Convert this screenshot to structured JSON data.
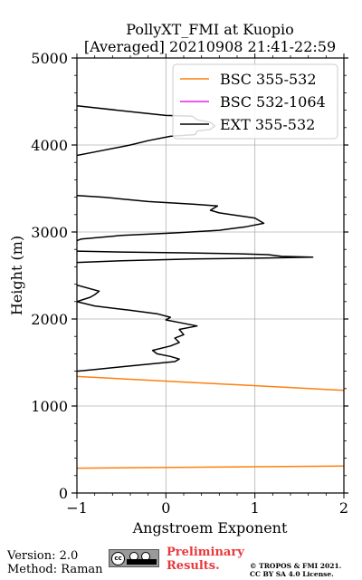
{
  "chart_data": {
    "type": "line",
    "title": "PollyXT_FMI at Kuopio",
    "subtitle": "[Averaged] 20210908 21:41-22:59",
    "xlabel": "Angstroem Exponent",
    "ylabel": "Height (m)",
    "xlim": [
      -1,
      2
    ],
    "ylim": [
      0,
      5000
    ],
    "x_ticks": [
      "−1",
      "0",
      "1",
      "2"
    ],
    "y_ticks": [
      "0",
      "1000",
      "2000",
      "3000",
      "4000",
      "5000"
    ],
    "grid": true,
    "legend_position": "top-right",
    "series": [
      {
        "name": "BSC 355-532",
        "color": "#ff7f0e",
        "segments": [
          [
            [
              -1.0,
              1340
            ],
            [
              2.0,
              1180
            ]
          ],
          [
            [
              -1.0,
              285
            ],
            [
              2.0,
              310
            ]
          ]
        ]
      },
      {
        "name": "BSC 532-1064",
        "color": "#e81ee8",
        "segments": []
      },
      {
        "name": "EXT 355-532",
        "color": "#000000",
        "segments": [
          [
            [
              -1.0,
              4450
            ],
            [
              0.0,
              4340
            ],
            [
              0.3,
              4330
            ],
            [
              0.35,
              4290
            ],
            [
              0.5,
              4260
            ],
            [
              0.55,
              4220
            ],
            [
              0.5,
              4180
            ],
            [
              0.35,
              4160
            ],
            [
              0.33,
              4120
            ],
            [
              0.05,
              4100
            ],
            [
              -0.2,
              4050
            ],
            [
              -0.4,
              4000
            ],
            [
              -0.8,
              3920
            ],
            [
              -1.0,
              3880
            ]
          ],
          [
            [
              -1.0,
              3420
            ],
            [
              -0.7,
              3400
            ],
            [
              -0.2,
              3350
            ],
            [
              0.3,
              3320
            ],
            [
              0.58,
              3300
            ],
            [
              0.5,
              3250
            ],
            [
              0.6,
              3220
            ],
            [
              0.8,
              3190
            ],
            [
              1.0,
              3160
            ],
            [
              1.1,
              3100
            ],
            [
              0.9,
              3060
            ],
            [
              0.6,
              3020
            ],
            [
              0.1,
              2990
            ],
            [
              -0.5,
              2960
            ],
            [
              -0.95,
              2920
            ],
            [
              -1.0,
              2900
            ]
          ],
          [
            [
              -1.0,
              2780
            ],
            [
              -0.5,
              2770
            ],
            [
              0.2,
              2760
            ],
            [
              0.8,
              2750
            ],
            [
              1.15,
              2740
            ],
            [
              1.3,
              2720
            ],
            [
              1.65,
              2710
            ],
            [
              1.1,
              2700
            ],
            [
              0.3,
              2690
            ],
            [
              -0.5,
              2670
            ],
            [
              -1.0,
              2650
            ]
          ],
          [
            [
              -1.0,
              2390
            ],
            [
              -0.75,
              2320
            ],
            [
              -0.8,
              2280
            ],
            [
              -0.85,
              2250
            ],
            [
              -1.0,
              2200
            ],
            [
              -0.8,
              2150
            ],
            [
              -0.4,
              2100
            ],
            [
              -0.1,
              2060
            ],
            [
              0.05,
              2020
            ],
            [
              0.0,
              1990
            ],
            [
              0.2,
              1950
            ],
            [
              0.35,
              1920
            ],
            [
              0.15,
              1880
            ],
            [
              0.2,
              1820
            ],
            [
              0.1,
              1780
            ],
            [
              0.15,
              1730
            ],
            [
              0.05,
              1690
            ],
            [
              -0.15,
              1640
            ],
            [
              -0.1,
              1600
            ],
            [
              0.05,
              1570
            ],
            [
              0.15,
              1540
            ],
            [
              0.1,
              1510
            ],
            [
              -0.2,
              1480
            ],
            [
              -0.5,
              1450
            ],
            [
              -0.8,
              1420
            ],
            [
              -1.0,
              1400
            ]
          ]
        ]
      }
    ]
  },
  "footer": {
    "version": "Version: 2.0",
    "method": "Method: Raman",
    "preliminary_line1": "Preliminary",
    "preliminary_line2": "Results.",
    "copyright_line1": "© TROPOS & FMI 2021.",
    "copyright_line2": "CC BY SA 4.0 License.",
    "logo_text": "cc"
  }
}
